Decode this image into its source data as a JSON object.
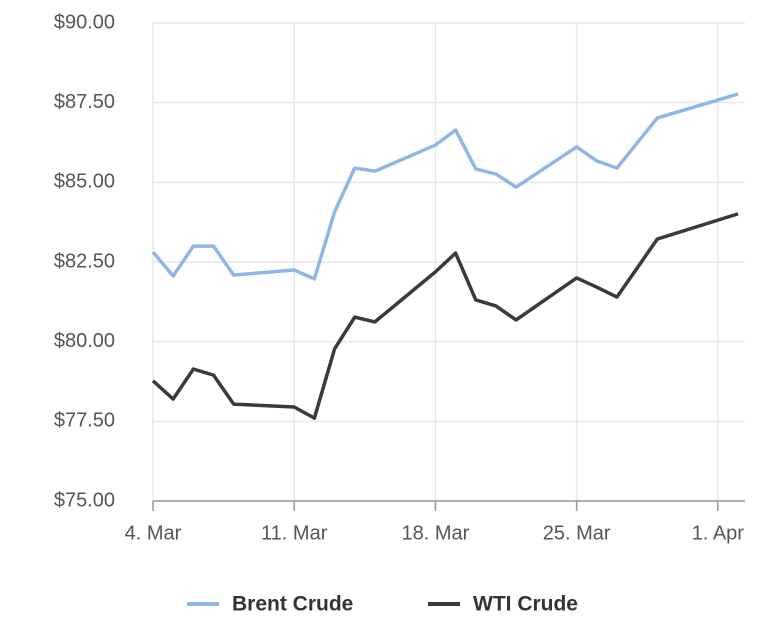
{
  "chart_data": {
    "type": "line",
    "x": [
      "03-04",
      "03-05",
      "03-06",
      "03-07",
      "03-08",
      "03-11",
      "03-12",
      "03-13",
      "03-14",
      "03-15",
      "03-18",
      "03-19",
      "03-20",
      "03-21",
      "03-22",
      "03-25",
      "03-26",
      "03-27",
      "03-29",
      "04-02"
    ],
    "series": [
      {
        "name": "Brent Crude",
        "color": "#8fb6e4",
        "values": [
          82.81,
          82.06,
          83.0,
          83.0,
          82.09,
          82.25,
          81.97,
          84.07,
          85.45,
          85.35,
          86.17,
          86.64,
          85.42,
          85.26,
          84.85,
          86.11,
          85.67,
          85.45,
          87.02,
          87.77
        ]
      },
      {
        "name": "WTI Crude",
        "color": "#3a3a3e",
        "values": [
          78.77,
          78.2,
          79.14,
          78.95,
          78.04,
          77.95,
          77.6,
          79.77,
          80.77,
          80.62,
          82.19,
          82.78,
          81.31,
          81.12,
          80.68,
          82.0,
          81.71,
          81.4,
          83.22,
          84.01
        ]
      }
    ],
    "xlim": [
      "03-04",
      "04-02"
    ],
    "xticks": [
      {
        "value": "03-04",
        "label": "4. Mar"
      },
      {
        "value": "03-11",
        "label": "11. Mar"
      },
      {
        "value": "03-18",
        "label": "18. Mar"
      },
      {
        "value": "03-25",
        "label": "25. Mar"
      },
      {
        "value": "04-01",
        "label": "1. Apr"
      }
    ],
    "ylim": [
      75,
      90
    ],
    "yticks": [
      {
        "value": 75,
        "label": "$75.00"
      },
      {
        "value": 77.5,
        "label": "$77.50"
      },
      {
        "value": 80,
        "label": "$80.00"
      },
      {
        "value": 82.5,
        "label": "$82.50"
      },
      {
        "value": 85,
        "label": "$85.00"
      },
      {
        "value": 87.5,
        "label": "$87.50"
      },
      {
        "value": 90,
        "label": "$90.00"
      }
    ],
    "grid": true,
    "legend": "bottom"
  }
}
